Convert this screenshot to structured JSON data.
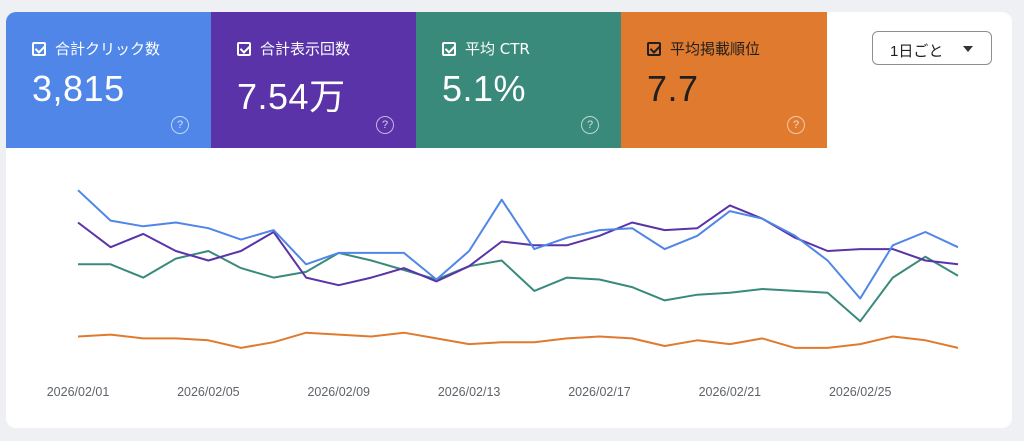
{
  "metrics": [
    {
      "label": "合計クリック数",
      "value": "3,815",
      "color": "#4f86e8"
    },
    {
      "label": "合計表示回数",
      "value": "7.54万",
      "color": "#5a33a8"
    },
    {
      "label": "平均 CTR",
      "value": "5.1%",
      "color": "#3a8a7c"
    },
    {
      "label": "平均掲載順位",
      "value": "7.7",
      "color": "#e07a2e"
    }
  ],
  "help_glyph": "?",
  "period_select": {
    "value": "1日ごと"
  },
  "chart_data": {
    "type": "line",
    "x": [
      "2026/02/01",
      "2026/02/02",
      "2026/02/03",
      "2026/02/04",
      "2026/02/05",
      "2026/02/06",
      "2026/02/07",
      "2026/02/08",
      "2026/02/09",
      "2026/02/10",
      "2026/02/11",
      "2026/02/12",
      "2026/02/13",
      "2026/02/14",
      "2026/02/15",
      "2026/02/16",
      "2026/02/17",
      "2026/02/18",
      "2026/02/19",
      "2026/02/20",
      "2026/02/21",
      "2026/02/22",
      "2026/02/23",
      "2026/02/24",
      "2026/02/25",
      "2026/02/26",
      "2026/02/27",
      "2026/02/28"
    ],
    "xtick_labels": [
      "2026/02/01",
      "2026/02/05",
      "2026/02/09",
      "2026/02/13",
      "2026/02/17",
      "2026/02/21",
      "2026/02/25"
    ],
    "series": [
      {
        "name": "合計クリック数",
        "color": "#4f86e8",
        "values": [
          92,
          76,
          73,
          75,
          72,
          66,
          71,
          53,
          59,
          59,
          59,
          45,
          60,
          87,
          61,
          67,
          71,
          72,
          61,
          68,
          81,
          77,
          68,
          55,
          35,
          63,
          70,
          62
        ]
      },
      {
        "name": "合計表示回数",
        "color": "#5a33a8",
        "values": [
          75,
          62,
          69,
          60,
          55,
          60,
          70,
          46,
          42,
          46,
          51,
          44,
          52,
          65,
          63,
          63,
          68,
          75,
          71,
          72,
          84,
          77,
          67,
          60,
          61,
          61,
          55,
          53
        ]
      },
      {
        "name": "平均 CTR",
        "color": "#3a8a7c",
        "values": [
          53,
          53,
          46,
          56,
          60,
          51,
          46,
          49,
          59,
          55,
          50,
          45,
          52,
          55,
          39,
          46,
          45,
          41,
          34,
          37,
          38,
          40,
          39,
          38,
          23,
          46,
          57,
          47
        ]
      },
      {
        "name": "平均掲載順位",
        "color": "#e07a2e",
        "values": [
          15,
          16,
          14,
          14,
          13,
          9,
          12,
          17,
          16,
          15,
          17,
          14,
          11,
          12,
          12,
          14,
          15,
          14,
          10,
          13,
          11,
          14,
          9,
          9,
          11,
          15,
          13,
          9
        ]
      }
    ],
    "ylim": [
      0,
      100
    ],
    "grid": false,
    "legend": "tiles-top"
  }
}
